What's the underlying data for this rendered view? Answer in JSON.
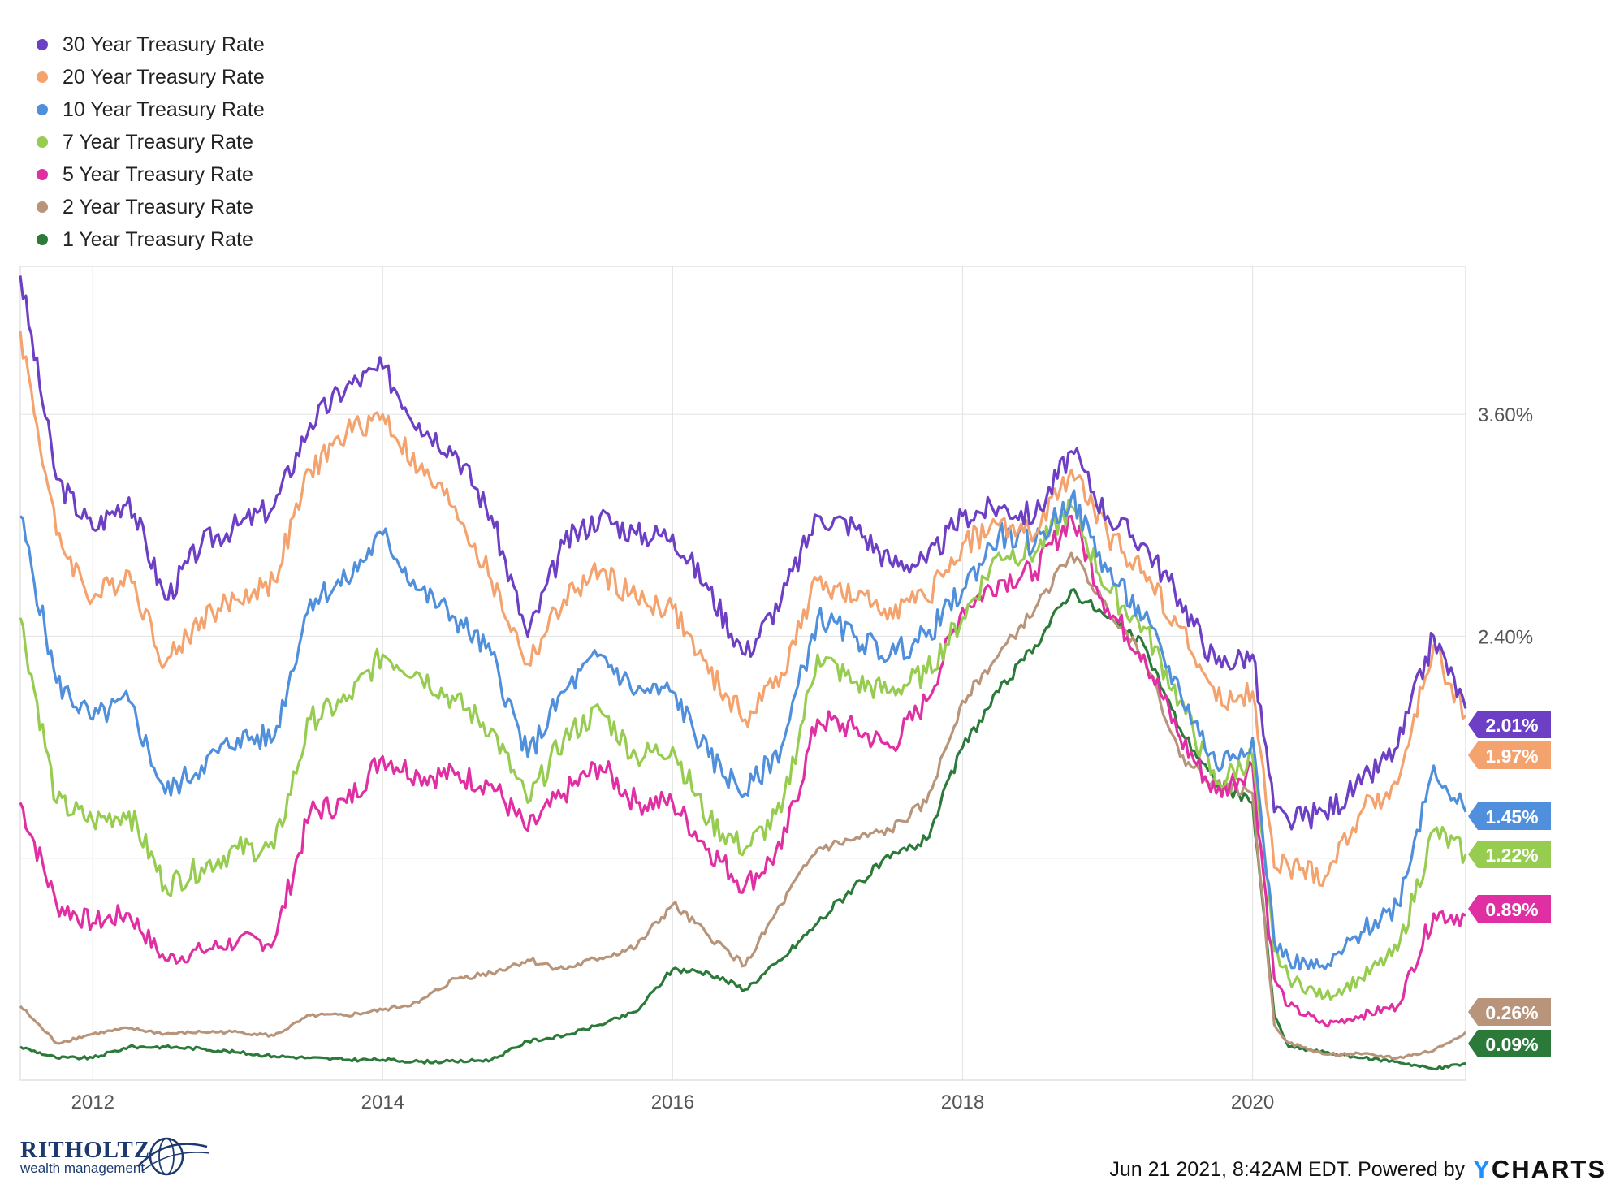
{
  "chart_data": {
    "type": "line",
    "title": "",
    "xlabel": "",
    "ylabel": "",
    "x_ticks": [
      "2012",
      "2014",
      "2016",
      "2018",
      "2020"
    ],
    "y_ticks": [
      "2.40%",
      "3.60%"
    ],
    "x_range": [
      2011.5,
      2021.47
    ],
    "ylim": [
      0.0,
      4.4
    ],
    "legend_position": "top-left",
    "grid": true,
    "x": [
      2011.5,
      2011.75,
      2012.0,
      2012.25,
      2012.5,
      2012.75,
      2013.0,
      2013.25,
      2013.5,
      2013.75,
      2014.0,
      2014.25,
      2014.5,
      2014.75,
      2015.0,
      2015.25,
      2015.5,
      2015.75,
      2016.0,
      2016.25,
      2016.5,
      2016.75,
      2017.0,
      2017.25,
      2017.5,
      2017.75,
      2018.0,
      2018.25,
      2018.5,
      2018.75,
      2019.0,
      2019.25,
      2019.5,
      2019.75,
      2020.0,
      2020.15,
      2020.25,
      2020.5,
      2020.75,
      2021.0,
      2021.25,
      2021.47
    ],
    "series": [
      {
        "name": "30 Year Treasury Rate",
        "color": "#6c3fc4",
        "end_label": "2.01%",
        "values": [
          4.35,
          3.25,
          2.98,
          3.15,
          2.6,
          2.9,
          3.0,
          3.1,
          3.55,
          3.75,
          3.85,
          3.55,
          3.4,
          3.05,
          2.4,
          2.9,
          3.05,
          2.95,
          2.95,
          2.65,
          2.3,
          2.6,
          3.05,
          3.0,
          2.8,
          2.8,
          3.05,
          3.1,
          3.05,
          3.4,
          3.05,
          2.9,
          2.6,
          2.25,
          2.3,
          1.45,
          1.4,
          1.45,
          1.6,
          1.8,
          2.4,
          2.01
        ]
      },
      {
        "name": "20 Year Treasury Rate",
        "color": "#f5a36e",
        "end_label": "1.97%",
        "values": [
          4.05,
          2.95,
          2.6,
          2.75,
          2.25,
          2.5,
          2.6,
          2.7,
          3.3,
          3.5,
          3.6,
          3.3,
          3.1,
          2.7,
          2.25,
          2.6,
          2.75,
          2.6,
          2.55,
          2.2,
          1.95,
          2.2,
          2.7,
          2.6,
          2.55,
          2.6,
          2.9,
          3.0,
          2.95,
          3.3,
          2.95,
          2.75,
          2.45,
          2.05,
          2.1,
          1.15,
          1.15,
          1.1,
          1.45,
          1.6,
          2.35,
          1.97
        ]
      },
      {
        "name": "10 Year Treasury Rate",
        "color": "#4f8fdc",
        "end_label": "1.45%",
        "values": [
          3.05,
          2.15,
          1.95,
          2.05,
          1.55,
          1.7,
          1.85,
          1.85,
          2.6,
          2.7,
          2.95,
          2.65,
          2.5,
          2.3,
          1.75,
          2.1,
          2.3,
          2.1,
          2.1,
          1.75,
          1.55,
          1.8,
          2.5,
          2.4,
          2.3,
          2.4,
          2.65,
          2.95,
          2.9,
          3.15,
          2.75,
          2.5,
          2.1,
          1.7,
          1.85,
          0.75,
          0.65,
          0.6,
          0.8,
          0.95,
          1.7,
          1.45
        ]
      },
      {
        "name": "7 Year Treasury Rate",
        "color": "#96cc4f",
        "end_label": "1.22%",
        "values": [
          2.5,
          1.5,
          1.4,
          1.45,
          1.05,
          1.15,
          1.25,
          1.25,
          1.95,
          2.05,
          2.3,
          2.2,
          2.05,
          1.9,
          1.5,
          1.85,
          2.0,
          1.75,
          1.8,
          1.4,
          1.25,
          1.45,
          2.3,
          2.15,
          2.1,
          2.2,
          2.5,
          2.85,
          2.85,
          3.1,
          2.65,
          2.45,
          2.05,
          1.6,
          1.75,
          0.7,
          0.55,
          0.45,
          0.55,
          0.7,
          1.35,
          1.22
        ]
      },
      {
        "name": "5 Year Treasury Rate",
        "color": "#e02fa3",
        "end_label": "0.89%",
        "values": [
          1.5,
          0.95,
          0.85,
          0.9,
          0.65,
          0.7,
          0.75,
          0.75,
          1.45,
          1.5,
          1.75,
          1.65,
          1.65,
          1.6,
          1.35,
          1.55,
          1.7,
          1.5,
          1.5,
          1.25,
          1.05,
          1.25,
          1.95,
          1.9,
          1.8,
          2.05,
          2.55,
          2.7,
          2.75,
          3.05,
          2.55,
          2.3,
          1.85,
          1.55,
          1.7,
          0.55,
          0.4,
          0.3,
          0.35,
          0.4,
          0.9,
          0.89
        ]
      },
      {
        "name": "2 Year Treasury Rate",
        "color": "#b8957a",
        "end_label": "0.26%",
        "values": [
          0.4,
          0.2,
          0.25,
          0.28,
          0.25,
          0.26,
          0.26,
          0.24,
          0.35,
          0.35,
          0.38,
          0.42,
          0.55,
          0.58,
          0.65,
          0.6,
          0.66,
          0.72,
          0.95,
          0.78,
          0.62,
          0.95,
          1.25,
          1.3,
          1.35,
          1.5,
          2.05,
          2.3,
          2.55,
          2.85,
          2.55,
          2.3,
          1.75,
          1.6,
          1.55,
          0.3,
          0.2,
          0.14,
          0.14,
          0.12,
          0.16,
          0.26
        ]
      },
      {
        "name": "1 Year Treasury Rate",
        "color": "#2c7a3a",
        "end_label": "0.09%",
        "values": [
          0.18,
          0.12,
          0.12,
          0.18,
          0.18,
          0.17,
          0.15,
          0.13,
          0.12,
          0.11,
          0.11,
          0.1,
          0.1,
          0.11,
          0.21,
          0.24,
          0.3,
          0.37,
          0.6,
          0.58,
          0.49,
          0.65,
          0.85,
          1.05,
          1.2,
          1.3,
          1.8,
          2.1,
          2.35,
          2.65,
          2.5,
          2.35,
          1.9,
          1.6,
          1.5,
          0.35,
          0.18,
          0.15,
          0.12,
          0.1,
          0.06,
          0.09
        ]
      }
    ]
  },
  "footer": {
    "timestamp": "Jun 21 2021, 8:42AM EDT. Powered by",
    "logo_y": "Y",
    "logo_rest": "CHARTS"
  },
  "brand": {
    "name": "RITHOLTZ",
    "subtitle": "wealth management"
  }
}
